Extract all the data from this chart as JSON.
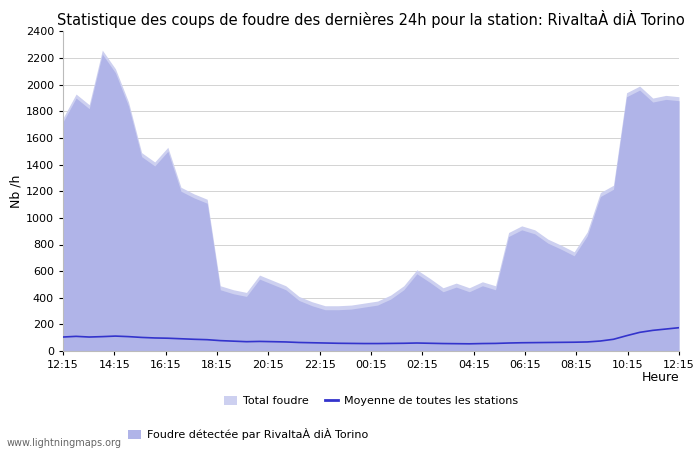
{
  "title": "Statistique des coups de foudre des dernières 24h pour la station: RivaltaÀ diÀ Torino",
  "ylabel": "Nb /h",
  "xlabel": "Heure",
  "ylim": [
    0,
    2400
  ],
  "yticks": [
    0,
    200,
    400,
    600,
    800,
    1000,
    1200,
    1400,
    1600,
    1800,
    2000,
    2200,
    2400
  ],
  "xtick_labels": [
    "12:15",
    "14:15",
    "16:15",
    "18:15",
    "20:15",
    "22:15",
    "00:15",
    "02:15",
    "04:15",
    "06:15",
    "08:15",
    "10:15",
    "12:15"
  ],
  "watermark": "www.lightningmaps.org",
  "legend_label_total": "Total foudre",
  "legend_label_moyenne": "Moyenne de toutes les stations",
  "legend_label_detectee": "Foudre détectée par RivaltaÀ diÀ Torino",
  "total_foudre": [
    1750,
    1930,
    1850,
    2260,
    2120,
    1870,
    1490,
    1420,
    1530,
    1230,
    1180,
    1140,
    490,
    460,
    440,
    570,
    530,
    490,
    410,
    370,
    340,
    340,
    345,
    360,
    375,
    420,
    490,
    610,
    545,
    475,
    510,
    475,
    520,
    490,
    890,
    940,
    910,
    840,
    795,
    745,
    895,
    1190,
    1245,
    1940,
    1990,
    1900,
    1920,
    1910
  ],
  "foudre_detectee": [
    1720,
    1900,
    1820,
    2230,
    2090,
    1840,
    1460,
    1390,
    1500,
    1200,
    1150,
    1110,
    460,
    430,
    410,
    540,
    500,
    460,
    380,
    340,
    310,
    310,
    315,
    330,
    345,
    390,
    460,
    580,
    515,
    445,
    480,
    445,
    490,
    460,
    860,
    910,
    880,
    810,
    765,
    715,
    865,
    1160,
    1215,
    1910,
    1960,
    1870,
    1890,
    1880
  ],
  "moyenne": [
    105,
    110,
    105,
    108,
    112,
    108,
    102,
    98,
    96,
    92,
    88,
    85,
    78,
    74,
    70,
    72,
    70,
    68,
    64,
    62,
    60,
    58,
    57,
    56,
    56,
    57,
    58,
    60,
    58,
    56,
    55,
    54,
    56,
    57,
    60,
    62,
    63,
    64,
    65,
    66,
    68,
    75,
    88,
    115,
    140,
    155,
    165,
    175
  ],
  "total_color": "#cdd0f0",
  "detectee_color": "#b0b4e8",
  "moyenne_color": "#3333cc",
  "background_color": "#ffffff",
  "grid_color": "#cccccc",
  "title_fontsize": 10.5,
  "axis_fontsize": 9,
  "tick_fontsize": 8,
  "legend_fontsize": 8
}
